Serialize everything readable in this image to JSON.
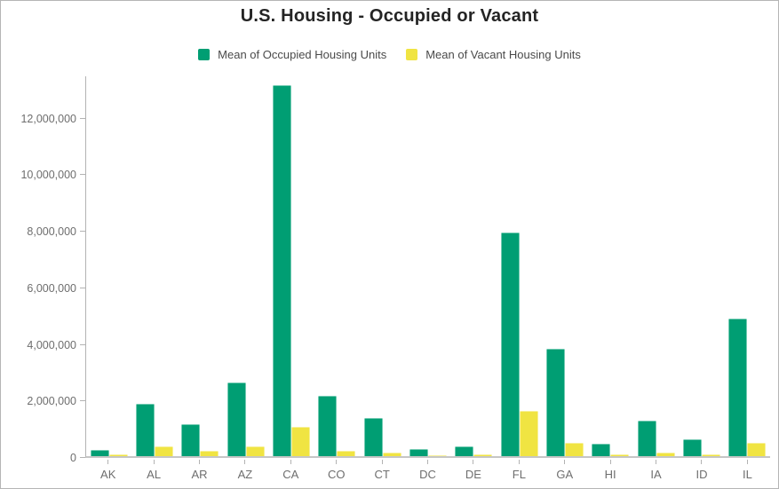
{
  "widget": {
    "background": "#ffffff",
    "border_color": "#b5b5b5",
    "axis_color": "#b3b3b3",
    "tick_label_color": "#6e6e6e",
    "title_color": "#242424",
    "legend_text_color": "#4a4a4a"
  },
  "chart_data": {
    "type": "bar",
    "title": "U.S. Housing - Occupied or Vacant",
    "categories": [
      "AK",
      "AL",
      "AR",
      "AZ",
      "CA",
      "CO",
      "CT",
      "DC",
      "DE",
      "FL",
      "GA",
      "HI",
      "IA",
      "ID",
      "IL"
    ],
    "series": [
      {
        "name": "Mean of Occupied Housing Units",
        "color": "#009E73",
        "values": [
          230000,
          1860000,
          1140000,
          2610000,
          13110000,
          2140000,
          1360000,
          260000,
          330000,
          7920000,
          3800000,
          450000,
          1250000,
          610000,
          4870000
        ]
      },
      {
        "name": "Mean of Vacant Housing Units",
        "color": "#F0E442",
        "values": [
          55000,
          340000,
          180000,
          360000,
          1050000,
          200000,
          140000,
          40000,
          60000,
          1600000,
          460000,
          70000,
          130000,
          70000,
          470000
        ]
      }
    ],
    "y_ticks": [
      {
        "value": 0,
        "label": "0"
      },
      {
        "value": 2000000,
        "label": "2,000,000"
      },
      {
        "value": 4000000,
        "label": "4,000,000"
      },
      {
        "value": 6000000,
        "label": "6,000,000"
      },
      {
        "value": 8000000,
        "label": "8,000,000"
      },
      {
        "value": 10000000,
        "label": "10,000,000"
      },
      {
        "value": 12000000,
        "label": "12,000,000"
      }
    ],
    "ylim": [
      0,
      13500000
    ],
    "xlabel": "",
    "ylabel": "",
    "grid": false,
    "legend_position": "top"
  }
}
